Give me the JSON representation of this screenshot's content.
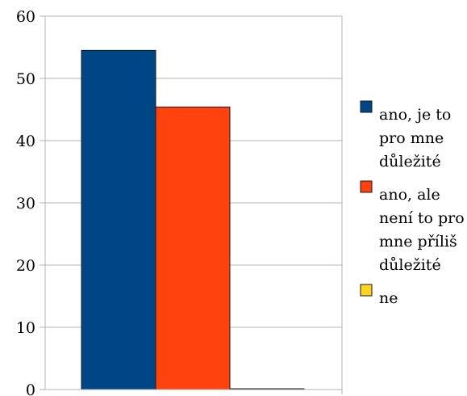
{
  "chart_data": {
    "type": "bar",
    "categories": [
      ""
    ],
    "series": [
      {
        "name": "ano, je to pro mne důležité",
        "values": [
          54.5
        ],
        "color": "#004586"
      },
      {
        "name": "ano, ale není to pro mne příliš důležité",
        "values": [
          45.4
        ],
        "color": "#ff420e"
      },
      {
        "name": "ne",
        "values": [
          0.1
        ],
        "color": "#ffd320"
      }
    ],
    "y_ticks": [
      "0",
      "10",
      "20",
      "30",
      "40",
      "50",
      "60"
    ],
    "ylim": [
      0,
      60
    ],
    "grid": true,
    "legend_position": "right",
    "legend_lines": [
      [
        "ano, je to",
        "pro mne",
        "důležité"
      ],
      [
        "ano, ale",
        "není to pro",
        "mne příliš",
        "důležité"
      ],
      [
        "ne"
      ]
    ],
    "title": "",
    "xlabel": "",
    "ylabel": ""
  }
}
